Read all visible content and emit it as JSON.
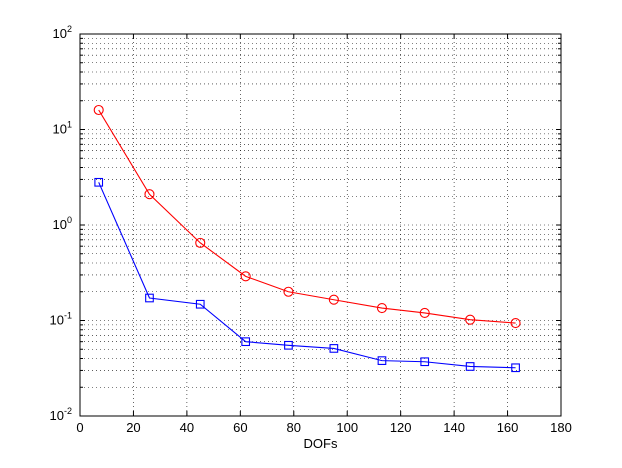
{
  "chart_data": {
    "type": "line",
    "title": "",
    "xlabel": "DOFs",
    "ylabel": "",
    "xlim": [
      0,
      180
    ],
    "ylim": [
      0.01,
      100
    ],
    "yscale": "log",
    "grid": true,
    "x_ticks": [
      0,
      20,
      40,
      60,
      80,
      100,
      120,
      140,
      160,
      180
    ],
    "x_tick_labels": [
      "0",
      "20",
      "40",
      "60",
      "80",
      "100",
      "120",
      "140",
      "160",
      "180"
    ],
    "y_ticks": [
      {
        "base": "10",
        "exp": "-2",
        "value": 0.01
      },
      {
        "base": "10",
        "exp": "-1",
        "value": 0.1
      },
      {
        "base": "10",
        "exp": "0",
        "value": 1
      },
      {
        "base": "10",
        "exp": "1",
        "value": 10
      },
      {
        "base": "10",
        "exp": "2",
        "value": 100
      }
    ],
    "series": [
      {
        "color": "#ff0000",
        "marker": "circle",
        "x": [
          7,
          26,
          45,
          62,
          78,
          95,
          113,
          129,
          146,
          163
        ],
        "y": [
          16,
          2.1,
          0.65,
          0.29,
          0.2,
          0.165,
          0.135,
          0.12,
          0.102,
          0.094
        ]
      },
      {
        "color": "#0000ff",
        "marker": "square",
        "x": [
          7,
          26,
          45,
          62,
          78,
          95,
          113,
          129,
          146,
          163
        ],
        "y": [
          2.8,
          0.172,
          0.148,
          0.06,
          0.055,
          0.051,
          0.038,
          0.037,
          0.033,
          0.032
        ]
      }
    ]
  }
}
